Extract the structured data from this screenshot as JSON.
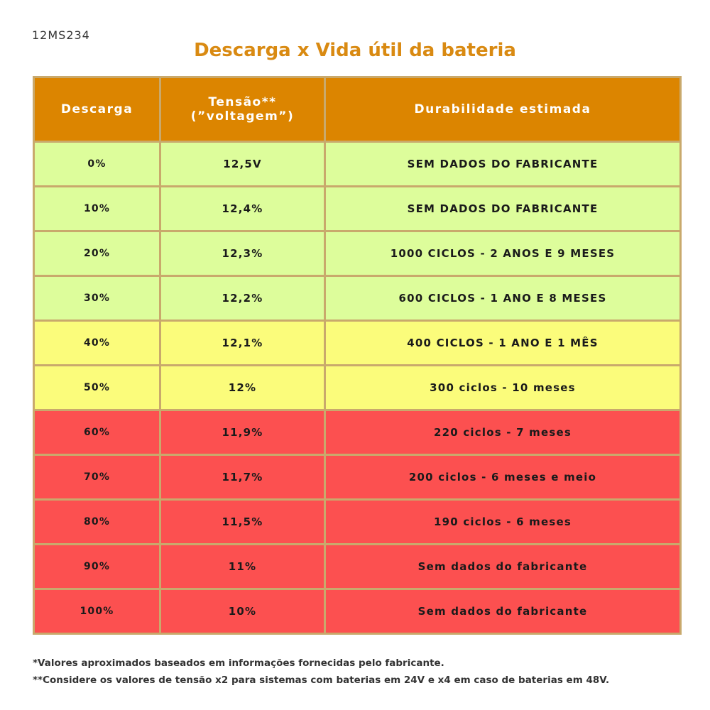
{
  "code": "12MS234",
  "title": "Descarga x Vida útil da bateria",
  "table": {
    "header": [
      [
        "Descarga"
      ],
      [
        "Tensão**",
        "(”voltagem”)"
      ],
      [
        "Durabilidade estimada"
      ]
    ],
    "rows": [
      [
        "0%",
        "12,5V",
        "SEM DADOS DO FABRICANTE"
      ],
      [
        "10%",
        "12,4%",
        "SEM DADOS DO FABRICANTE"
      ],
      [
        "20%",
        "12,3%",
        "1000 CICLOS - 2 ANOS E 9 MESES"
      ],
      [
        "30%",
        "12,2%",
        "600 CICLOS - 1 ANO E 8 MESES"
      ],
      [
        "40%",
        "12,1%",
        "400 CICLOS - 1 ANO E 1 MÊS"
      ],
      [
        "50%",
        "12%",
        "300 ciclos - 10 meses"
      ],
      [
        "60%",
        "11,9%",
        "220 ciclos - 7 meses"
      ],
      [
        "70%",
        "11,7%",
        "200 ciclos - 6 meses e meio"
      ],
      [
        "80%",
        "11,5%",
        "190 ciclos - 6 meses"
      ],
      [
        "90%",
        "11%",
        "Sem dados do fabricante"
      ],
      [
        "100%",
        "10%",
        "Sem dados do fabricante"
      ]
    ]
  },
  "footnotes": [
    "*Valores aproximados baseados em informações fornecidas pelo fabricante.",
    "**Considere os valores de tensão x2 para sistemas com baterias em 24V e x4 em caso de baterias em 48V."
  ]
}
